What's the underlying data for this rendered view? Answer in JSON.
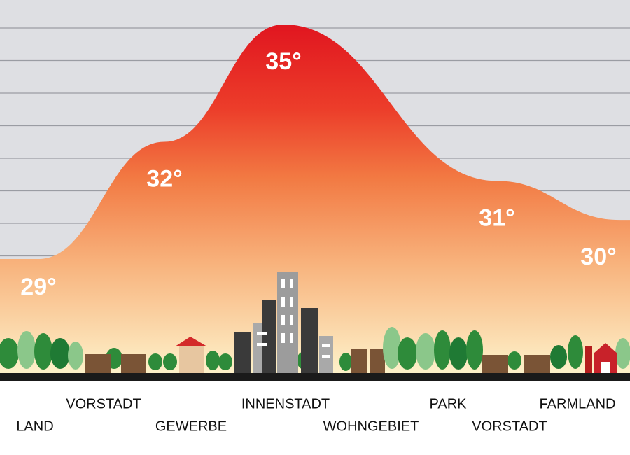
{
  "chart_data": {
    "type": "area",
    "peaks": [
      {
        "value": 29,
        "label": "29°"
      },
      {
        "value": 32,
        "label": "32°"
      },
      {
        "value": 35,
        "label": "35°"
      },
      {
        "value": 31,
        "label": "31°"
      },
      {
        "value": 30,
        "label": "30°"
      }
    ],
    "zones": [
      "LAND",
      "VORSTADT",
      "GEWERBE",
      "INNENSTADT",
      "WOHNGEBIET",
      "PARK",
      "VORSTADT",
      "FARMLAND"
    ],
    "grid": true
  }
}
